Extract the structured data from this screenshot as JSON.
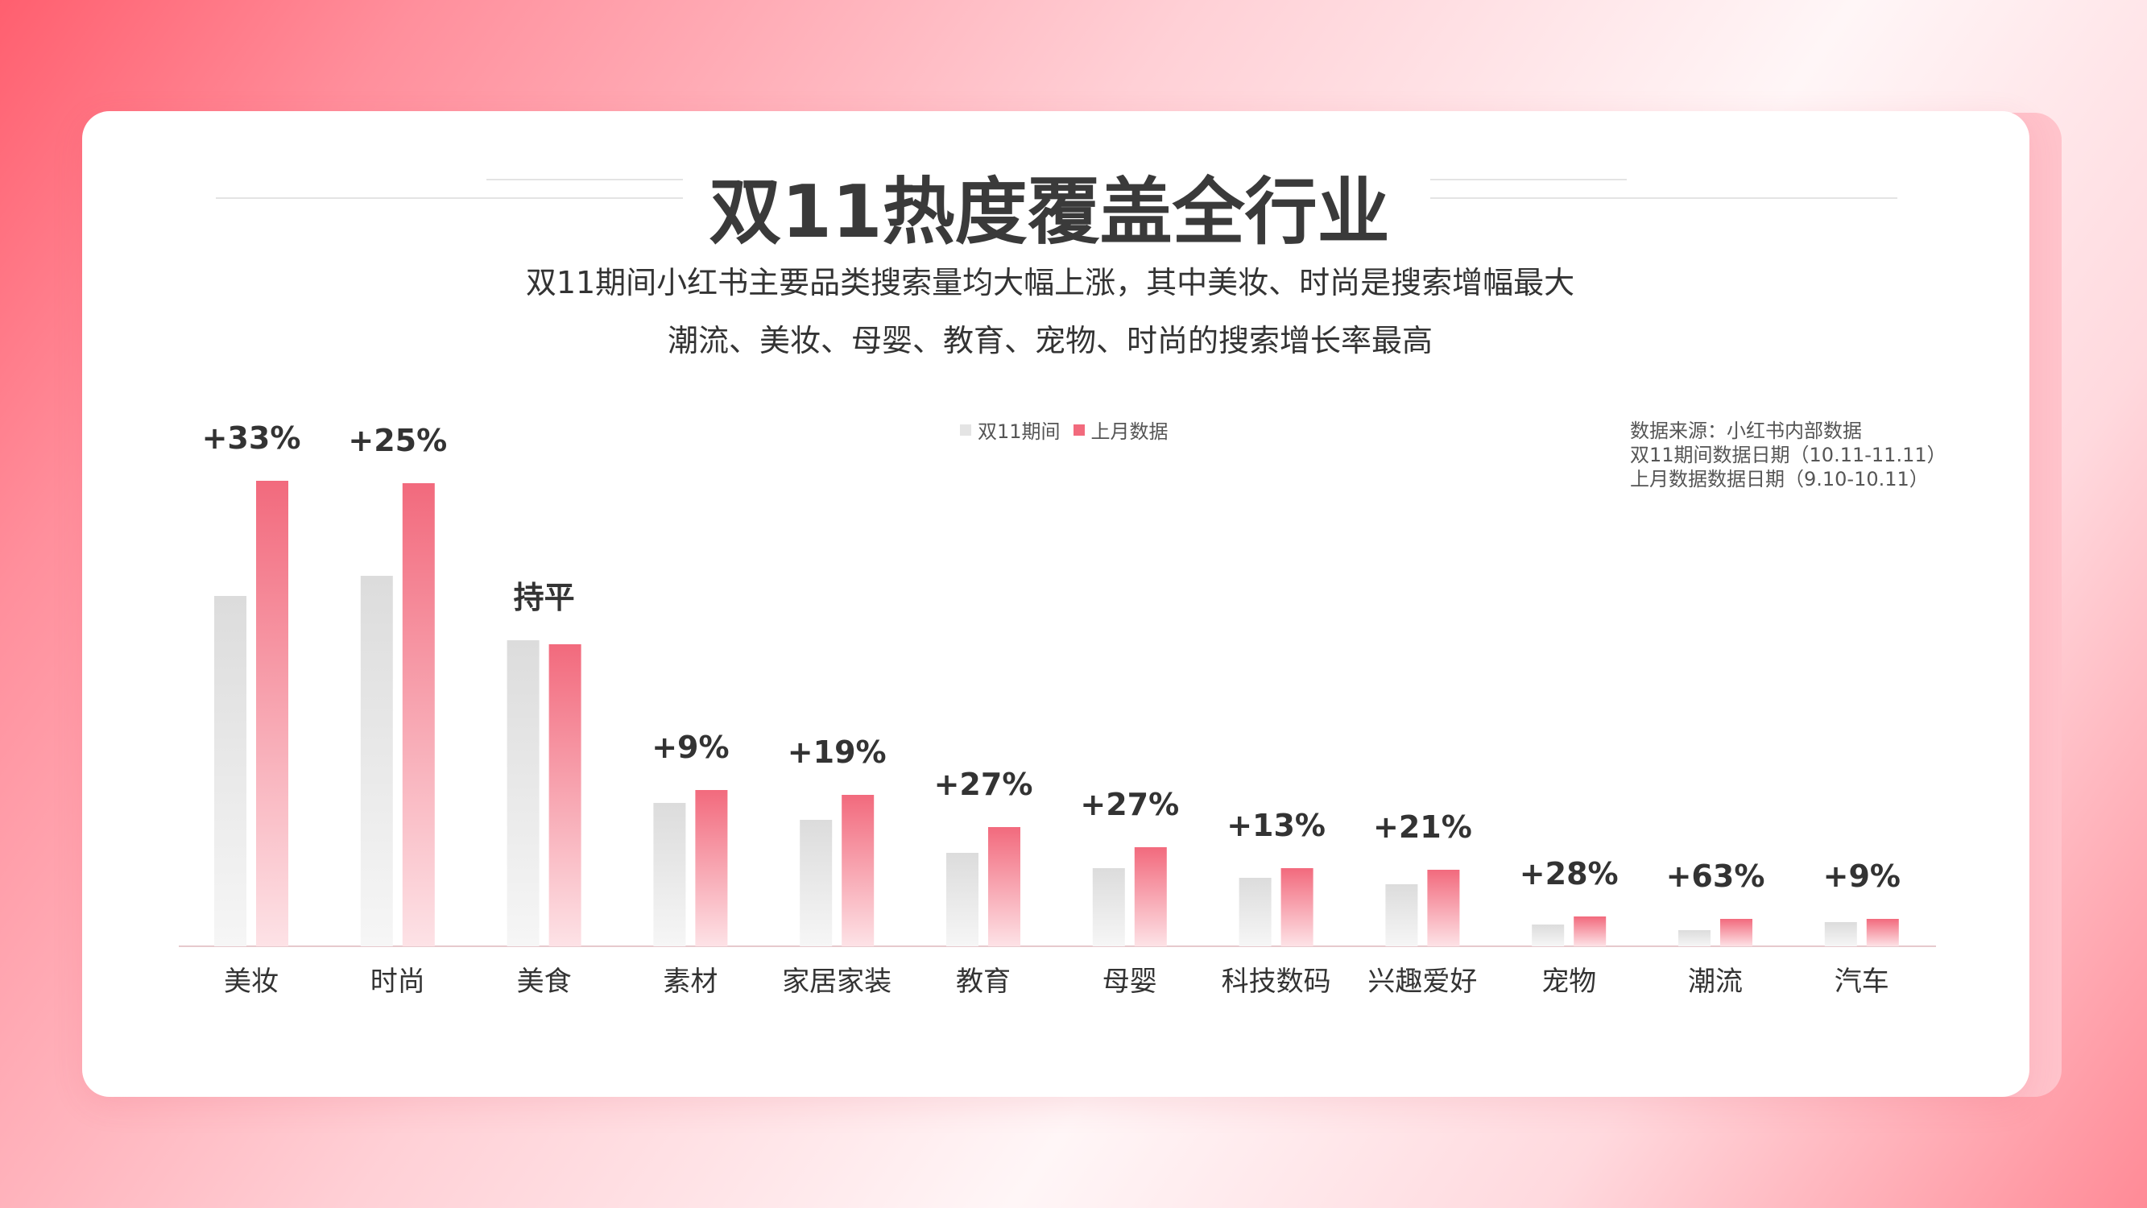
{
  "header": {
    "title": "双11热度覆盖全行业",
    "subtitle_line1": "双11期间小红书主要品类搜索量均大幅上涨，其中美妆、时尚是搜索增幅最大",
    "subtitle_line2": "潮流、美妆、母婴、教育、宠物、时尚的搜索增长率最高"
  },
  "legend": {
    "placement": "top-center",
    "items": [
      {
        "label": "双11期间",
        "color": "#e4e4e4"
      },
      {
        "label": "上月数据",
        "color": "#f26a7d"
      }
    ]
  },
  "source": {
    "line1": "数据来源：小红书内部数据",
    "line2": "双11期间数据日期（10.11-11.11）",
    "line3": "上月数据数据日期（9.10-10.11）"
  },
  "colors": {
    "grey_bar_top": "#dcdcdc",
    "grey_bar_bottom": "#f6f6f6",
    "pink_bar_top": "#f26a7d",
    "pink_bar_bottom": "#fde2e6"
  },
  "chart_data": {
    "type": "bar",
    "categories": [
      "美妆",
      "时尚",
      "美食",
      "素材",
      "家居家装",
      "教育",
      "母婴",
      "科技数码",
      "兴趣爱好",
      "宠物",
      "潮流",
      "汽车"
    ],
    "series": [
      {
        "name": "双11期间",
        "values": [
          435,
          460,
          380,
          178,
          157,
          116,
          97,
          85,
          77,
          27,
          20,
          30
        ]
      },
      {
        "name": "上月数据",
        "values": [
          578,
          575,
          375,
          194,
          188,
          148,
          123,
          97,
          95,
          37,
          34,
          34
        ]
      }
    ],
    "labels": [
      "+33%",
      "+25%",
      "持平",
      "+9%",
      "+19%",
      "+27%",
      "+27%",
      "+13%",
      "+21%",
      "+28%",
      "+63%",
      "+9%"
    ],
    "ylim": [
      0,
      620
    ],
    "grid": false,
    "y_axis_visible": false
  }
}
